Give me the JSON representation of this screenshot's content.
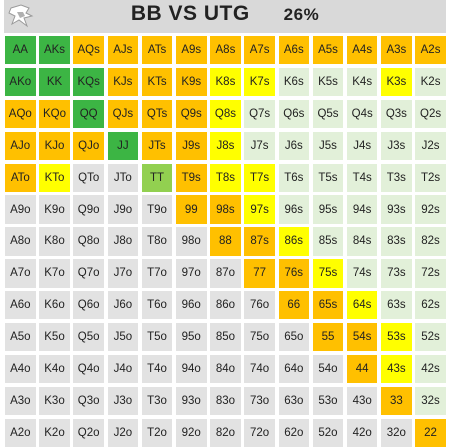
{
  "header": {
    "title": "BB VS UTG",
    "percentage": "26%"
  },
  "legend_colors": {
    "g": "#3cb544",
    "l": "#92d050",
    "o": "#ffc000",
    "y": "#ffff00",
    "w": "#e2f0d9",
    "x": "#e2e2e2"
  },
  "grid": {
    "rows": [
      [
        "AA",
        "AKs",
        "AQs",
        "AJs",
        "ATs",
        "A9s",
        "A8s",
        "A7s",
        "A6s",
        "A5s",
        "A4s",
        "A3s",
        "A2s"
      ],
      [
        "AKo",
        "KK",
        "KQs",
        "KJs",
        "KTs",
        "K9s",
        "K8s",
        "K7s",
        "K6s",
        "K5s",
        "K4s",
        "K3s",
        "K2s"
      ],
      [
        "AQo",
        "KQo",
        "QQ",
        "QJs",
        "QTs",
        "Q9s",
        "Q8s",
        "Q7s",
        "Q6s",
        "Q5s",
        "Q4s",
        "Q3s",
        "Q2s"
      ],
      [
        "AJo",
        "KJo",
        "QJo",
        "JJ",
        "JTs",
        "J9s",
        "J8s",
        "J7s",
        "J6s",
        "J5s",
        "J4s",
        "J3s",
        "J2s"
      ],
      [
        "ATo",
        "KTo",
        "QTo",
        "JTo",
        "TT",
        "T9s",
        "T8s",
        "T7s",
        "T6s",
        "T5s",
        "T4s",
        "T3s",
        "T2s"
      ],
      [
        "A9o",
        "K9o",
        "Q9o",
        "J9o",
        "T9o",
        "99",
        "98s",
        "97s",
        "96s",
        "95s",
        "94s",
        "93s",
        "92s"
      ],
      [
        "A8o",
        "K8o",
        "Q8o",
        "J8o",
        "T8o",
        "98o",
        "88",
        "87s",
        "86s",
        "85s",
        "84s",
        "83s",
        "82s"
      ],
      [
        "A7o",
        "K7o",
        "Q7o",
        "J7o",
        "T7o",
        "97o",
        "87o",
        "77",
        "76s",
        "75s",
        "74s",
        "73s",
        "72s"
      ],
      [
        "A6o",
        "K6o",
        "Q6o",
        "J6o",
        "T6o",
        "96o",
        "86o",
        "76o",
        "66",
        "65s",
        "64s",
        "63s",
        "62s"
      ],
      [
        "A5o",
        "K5o",
        "Q5o",
        "J5o",
        "T5o",
        "95o",
        "85o",
        "75o",
        "65o",
        "55",
        "54s",
        "53s",
        "52s"
      ],
      [
        "A4o",
        "K4o",
        "Q4o",
        "J4o",
        "T4o",
        "94o",
        "84o",
        "74o",
        "64o",
        "54o",
        "44",
        "43s",
        "42s"
      ],
      [
        "A3o",
        "K3o",
        "Q3o",
        "J3o",
        "T3o",
        "93o",
        "83o",
        "73o",
        "63o",
        "53o",
        "43o",
        "33",
        "32s"
      ],
      [
        "A2o",
        "K2o",
        "Q2o",
        "J2o",
        "T2o",
        "92o",
        "82o",
        "72o",
        "62o",
        "52o",
        "42o",
        "32o",
        "22"
      ]
    ],
    "colors": [
      [
        "g",
        "g",
        "o",
        "o",
        "o",
        "o",
        "o",
        "o",
        "o",
        "o",
        "o",
        "o",
        "o"
      ],
      [
        "g",
        "g",
        "g",
        "o",
        "o",
        "o",
        "y",
        "y",
        "w",
        "w",
        "w",
        "y",
        "w"
      ],
      [
        "o",
        "o",
        "g",
        "o",
        "o",
        "o",
        "y",
        "w",
        "w",
        "w",
        "w",
        "w",
        "w"
      ],
      [
        "o",
        "o",
        "o",
        "g",
        "o",
        "o",
        "y",
        "w",
        "w",
        "w",
        "w",
        "w",
        "w"
      ],
      [
        "o",
        "y",
        "x",
        "x",
        "l",
        "o",
        "y",
        "y",
        "w",
        "w",
        "w",
        "w",
        "w"
      ],
      [
        "x",
        "x",
        "x",
        "x",
        "x",
        "o",
        "o",
        "y",
        "w",
        "w",
        "w",
        "w",
        "w"
      ],
      [
        "x",
        "x",
        "x",
        "x",
        "x",
        "x",
        "o",
        "o",
        "y",
        "w",
        "w",
        "w",
        "w"
      ],
      [
        "x",
        "x",
        "x",
        "x",
        "x",
        "x",
        "x",
        "o",
        "o",
        "y",
        "w",
        "w",
        "w"
      ],
      [
        "x",
        "x",
        "x",
        "x",
        "x",
        "x",
        "x",
        "x",
        "o",
        "o",
        "y",
        "w",
        "w"
      ],
      [
        "x",
        "x",
        "x",
        "x",
        "x",
        "x",
        "x",
        "x",
        "x",
        "o",
        "o",
        "y",
        "w"
      ],
      [
        "x",
        "x",
        "x",
        "x",
        "x",
        "x",
        "x",
        "x",
        "x",
        "x",
        "o",
        "y",
        "w"
      ],
      [
        "x",
        "x",
        "x",
        "x",
        "x",
        "x",
        "x",
        "x",
        "x",
        "x",
        "x",
        "o",
        "w"
      ],
      [
        "x",
        "x",
        "x",
        "x",
        "x",
        "x",
        "x",
        "x",
        "x",
        "x",
        "x",
        "x",
        "o"
      ]
    ]
  }
}
